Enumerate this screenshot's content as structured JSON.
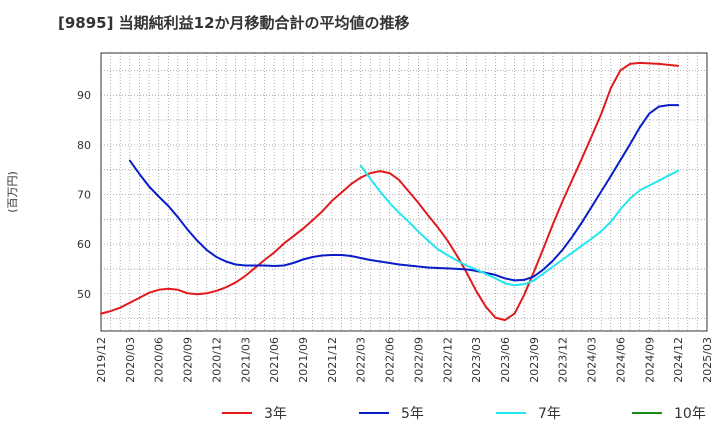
{
  "chart_data": {
    "type": "line",
    "title": "[9895]  当期純利益12か月移動合計の平均値の推移",
    "ylabel": "(百万円)",
    "xlabel": "",
    "x_ticks": [
      "2019/12",
      "2020/03",
      "2020/06",
      "2020/09",
      "2020/12",
      "2021/03",
      "2021/06",
      "2021/09",
      "2021/12",
      "2022/03",
      "2022/06",
      "2022/09",
      "2022/12",
      "2023/03",
      "2023/06",
      "2023/09",
      "2023/12",
      "2024/03",
      "2024/06",
      "2024/09",
      "2024/12",
      "2025/03"
    ],
    "y_ticks": [
      50,
      60,
      70,
      80,
      90
    ],
    "ylim": [
      42.5,
      98.5
    ],
    "grid": true,
    "legend_position": "bottom",
    "series": [
      {
        "name": "3年",
        "color": "#e31a1c",
        "x": [
          "2019/12",
          "2020/01",
          "2020/02",
          "2020/03",
          "2020/04",
          "2020/05",
          "2020/06",
          "2020/07",
          "2020/08",
          "2020/09",
          "2020/10",
          "2020/11",
          "2020/12",
          "2021/01",
          "2021/02",
          "2021/03",
          "2021/04",
          "2021/05",
          "2021/06",
          "2021/07",
          "2021/08",
          "2021/09",
          "2021/10",
          "2021/11",
          "2021/12",
          "2022/01",
          "2022/02",
          "2022/03",
          "2022/04",
          "2022/05",
          "2022/06",
          "2022/07",
          "2022/08",
          "2022/09",
          "2022/10",
          "2022/11",
          "2022/12",
          "2023/01",
          "2023/02",
          "2023/03",
          "2023/04",
          "2023/05",
          "2023/06",
          "2023/07",
          "2023/08",
          "2023/09",
          "2023/10",
          "2023/11",
          "2023/12",
          "2024/01",
          "2024/02",
          "2024/03",
          "2024/04",
          "2024/05",
          "2024/06",
          "2024/07",
          "2024/08",
          "2024/09",
          "2024/10",
          "2024/11",
          "2024/12"
        ],
        "values": [
          46.0,
          46.5,
          47.2,
          48.2,
          49.2,
          50.2,
          50.8,
          51.0,
          50.8,
          50.1,
          49.9,
          50.1,
          50.6,
          51.3,
          52.3,
          53.6,
          55.2,
          56.8,
          58.3,
          60.1,
          61.6,
          63.1,
          64.8,
          66.6,
          68.7,
          70.4,
          72.1,
          73.4,
          74.3,
          74.7,
          74.3,
          72.9,
          70.6,
          68.3,
          65.8,
          63.4,
          60.8,
          57.7,
          54.3,
          50.6,
          47.4,
          45.2,
          44.7,
          46.0,
          49.8,
          54.4,
          59.2,
          64.1,
          68.7,
          73.0,
          77.3,
          81.7,
          86.2,
          91.4,
          95.0,
          96.3,
          96.5,
          96.4,
          96.3,
          96.1,
          95.9
        ]
      },
      {
        "name": "5年",
        "color": "#0a1cc8",
        "x": [
          "2020/03",
          "2020/04",
          "2020/05",
          "2020/06",
          "2020/07",
          "2020/08",
          "2020/09",
          "2020/10",
          "2020/11",
          "2020/12",
          "2021/01",
          "2021/02",
          "2021/03",
          "2021/04",
          "2021/05",
          "2021/06",
          "2021/07",
          "2021/08",
          "2021/09",
          "2021/10",
          "2021/11",
          "2021/12",
          "2022/01",
          "2022/02",
          "2022/03",
          "2022/04",
          "2022/05",
          "2022/06",
          "2022/07",
          "2022/08",
          "2022/09",
          "2022/10",
          "2022/11",
          "2022/12",
          "2023/01",
          "2023/02",
          "2023/03",
          "2023/04",
          "2023/05",
          "2023/06",
          "2023/07",
          "2023/08",
          "2023/09",
          "2023/10",
          "2023/11",
          "2023/12",
          "2024/01",
          "2024/02",
          "2024/03",
          "2024/04",
          "2024/05",
          "2024/06",
          "2024/07",
          "2024/08",
          "2024/09",
          "2024/10",
          "2024/11",
          "2024/12"
        ],
        "values": [
          76.8,
          74.1,
          71.6,
          69.6,
          67.7,
          65.4,
          62.9,
          60.7,
          58.8,
          57.4,
          56.5,
          55.9,
          55.7,
          55.7,
          55.7,
          55.6,
          55.7,
          56.2,
          56.9,
          57.4,
          57.7,
          57.8,
          57.8,
          57.6,
          57.2,
          56.8,
          56.5,
          56.2,
          55.9,
          55.7,
          55.5,
          55.3,
          55.2,
          55.1,
          55.0,
          54.9,
          54.6,
          54.2,
          53.8,
          53.1,
          52.7,
          52.8,
          53.5,
          54.9,
          56.7,
          58.9,
          61.5,
          64.4,
          67.5,
          70.6,
          73.7,
          76.9,
          80.1,
          83.5,
          86.3,
          87.7,
          88.0,
          88.0
        ]
      },
      {
        "name": "7年",
        "color": "#22e6f0",
        "x": [
          "2022/03",
          "2022/04",
          "2022/05",
          "2022/06",
          "2022/07",
          "2022/08",
          "2022/09",
          "2022/10",
          "2022/11",
          "2022/12",
          "2023/01",
          "2023/02",
          "2023/03",
          "2023/04",
          "2023/05",
          "2023/06",
          "2023/07",
          "2023/08",
          "2023/09",
          "2023/10",
          "2023/11",
          "2023/12",
          "2024/01",
          "2024/02",
          "2024/03",
          "2024/04",
          "2024/05",
          "2024/06",
          "2024/07",
          "2024/08",
          "2024/09",
          "2024/10",
          "2024/11",
          "2024/12"
        ],
        "values": [
          75.8,
          73.2,
          70.6,
          68.3,
          66.3,
          64.5,
          62.5,
          60.7,
          59.0,
          57.8,
          56.7,
          55.7,
          54.9,
          54.0,
          53.1,
          52.1,
          51.7,
          51.9,
          52.7,
          54.1,
          55.5,
          56.9,
          58.3,
          59.7,
          61.1,
          62.6,
          64.5,
          67.0,
          69.2,
          70.8,
          71.8,
          72.8,
          73.8,
          74.8
        ]
      },
      {
        "name": "10年",
        "color": "#1a8a1a",
        "x": [],
        "values": []
      }
    ]
  }
}
